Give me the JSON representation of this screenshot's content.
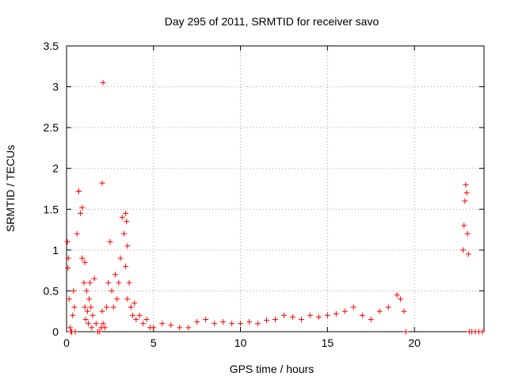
{
  "chart_data": {
    "type": "scatter",
    "title": "Day 295 of 2011, SRMTID for receiver savo",
    "xlabel": "GPS time / hours",
    "ylabel": "SRMTID / TECUs",
    "xlim": [
      0,
      24
    ],
    "ylim": [
      0,
      3.5
    ],
    "xticks": [
      0,
      5,
      10,
      15,
      20
    ],
    "yticks": [
      0,
      0.5,
      1,
      1.5,
      2,
      2.5,
      3,
      3.5
    ],
    "xtick_labels": [
      "0",
      "5",
      "10",
      "15",
      "20"
    ],
    "ytick_labels": [
      "0",
      "0.5",
      "1",
      "1.5",
      "2",
      "2.5",
      "3",
      "3.5"
    ],
    "grid": true,
    "marker": "plus",
    "series": [
      {
        "color": "#ff0000",
        "x": [
          0.05,
          0.1,
          0.15,
          0.2,
          0.25,
          0.3,
          0.35,
          0.4,
          0.45,
          0.5,
          0.6,
          0.7,
          0.8,
          0.9,
          1.0,
          1.05,
          1.1,
          1.15,
          1.2,
          1.25,
          1.3,
          1.35,
          1.4,
          1.45,
          1.5,
          1.6,
          1.7,
          1.8,
          1.9,
          2.0,
          2.05,
          2.1,
          2.2,
          2.3,
          2.4,
          2.5,
          2.6,
          2.7,
          2.8,
          2.9,
          3.0,
          3.1,
          3.2,
          3.3,
          3.4,
          3.5,
          3.6,
          3.7,
          3.8,
          3.9,
          4.0,
          4.2,
          4.4,
          4.6,
          4.8,
          5.0,
          5.5,
          6.0,
          6.5,
          7.0,
          7.5,
          8.0,
          8.5,
          9.0,
          9.5,
          10.0,
          10.5,
          11.0,
          11.5,
          12.0,
          12.5,
          13.0,
          13.5,
          14.0,
          14.5,
          15.0,
          15.5,
          16.0,
          16.5,
          17.0,
          17.5,
          18.0,
          18.5,
          19.0,
          19.2,
          19.4,
          19.5,
          22.8,
          22.85,
          22.9,
          22.95,
          23.0,
          23.05,
          23.1,
          23.15,
          23.3,
          23.5,
          23.7,
          23.9,
          0.08,
          0.7,
          0.9,
          1.05,
          2.1,
          2.05,
          3.4,
          3.45,
          3.5
        ],
        "y": [
          1.1,
          0.9,
          0.4,
          0.05,
          0.0,
          0.0,
          0.2,
          0.5,
          0.3,
          0.0,
          1.2,
          1.72,
          1.45,
          0.9,
          0.6,
          0.3,
          0.15,
          0.5,
          0.25,
          0.1,
          0.4,
          0.6,
          0.3,
          0.05,
          0.2,
          0.65,
          0.1,
          0.0,
          0.0,
          0.05,
          0.25,
          0.1,
          0.05,
          0.3,
          0.6,
          1.1,
          0.5,
          0.3,
          0.7,
          0.4,
          0.6,
          0.9,
          1.4,
          1.2,
          0.8,
          0.4,
          0.6,
          0.3,
          0.2,
          0.35,
          0.15,
          0.2,
          0.1,
          0.15,
          0.05,
          0.05,
          0.1,
          0.08,
          0.05,
          0.05,
          0.12,
          0.15,
          0.1,
          0.12,
          0.1,
          0.1,
          0.12,
          0.1,
          0.14,
          0.15,
          0.2,
          0.18,
          0.15,
          0.2,
          0.18,
          0.2,
          0.22,
          0.25,
          0.3,
          0.2,
          0.15,
          0.25,
          0.3,
          0.45,
          0.4,
          0.25,
          0.0,
          1.0,
          1.3,
          1.6,
          1.8,
          1.7,
          1.2,
          0.95,
          0.0,
          0.0,
          0.0,
          0.0,
          0.0,
          0.78,
          1.72,
          1.52,
          0.85,
          3.05,
          1.82,
          1.45,
          1.35,
          1.05
        ]
      }
    ]
  }
}
